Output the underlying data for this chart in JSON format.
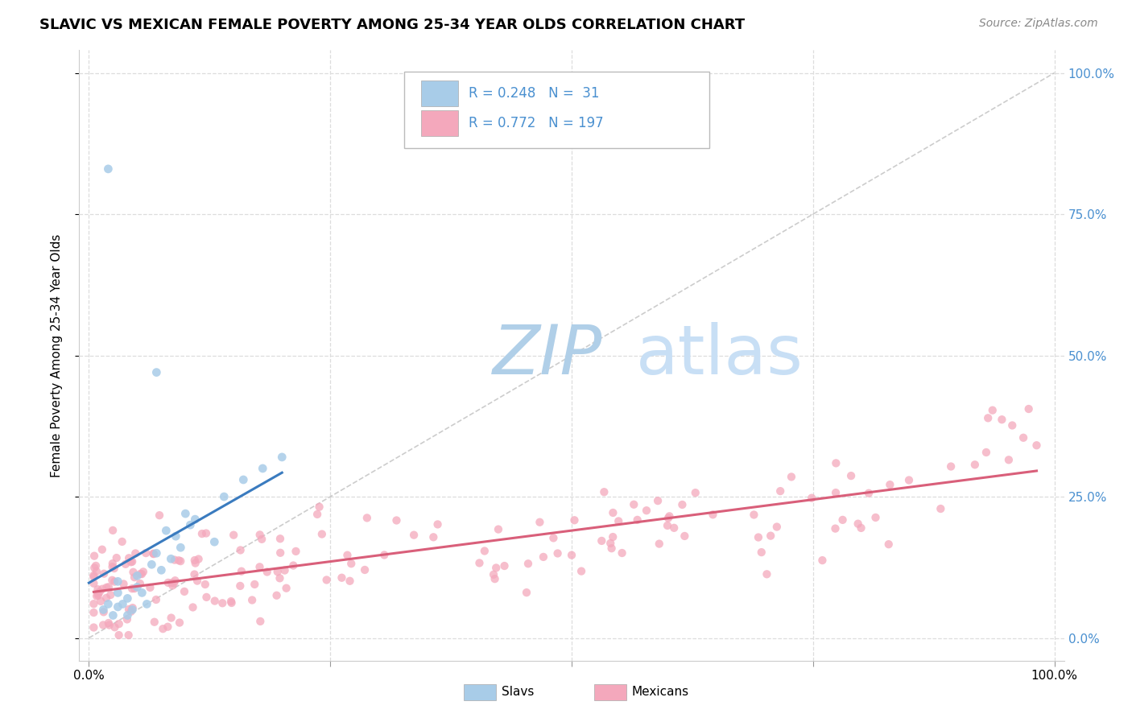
{
  "title": "SLAVIC VS MEXICAN FEMALE POVERTY AMONG 25-34 YEAR OLDS CORRELATION CHART",
  "source": "Source: ZipAtlas.com",
  "ylabel": "Female Poverty Among 25-34 Year Olds",
  "xlim": [
    -0.01,
    1.01
  ],
  "ylim": [
    -0.04,
    1.04
  ],
  "slavs_R": 0.248,
  "slavs_N": 31,
  "mexicans_R": 0.772,
  "mexicans_N": 197,
  "slavs_color": "#a8cce8",
  "mexicans_color": "#f4a8bc",
  "slavs_line_color": "#3a7bbf",
  "mexicans_line_color": "#d95f7a",
  "diagonal_color": "#c0c0c0",
  "watermark_zip_color": "#b8d4e8",
  "watermark_atlas_color": "#c8dff0",
  "legend_slavs_label": "Slavs",
  "legend_mexicans_label": "Mexicans",
  "right_tick_color": "#4a90d0",
  "grid_color": "#dddddd",
  "background_color": "#ffffff"
}
